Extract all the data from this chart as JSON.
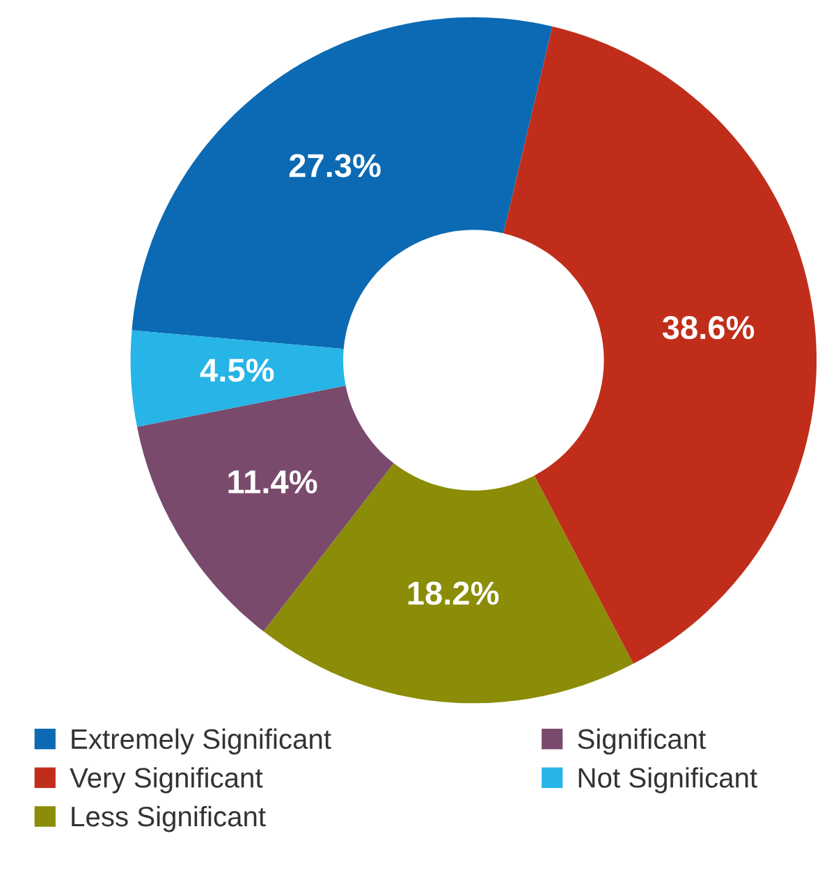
{
  "chart_data": {
    "type": "donut",
    "categories": [
      "Extremely Significant",
      "Very Significant",
      "Less Significant",
      "Significant",
      "Not Significant"
    ],
    "values": [
      27.3,
      38.6,
      18.2,
      11.4,
      4.5
    ],
    "colors": [
      "#0b6ab3",
      "#c02e1b",
      "#8b8c07",
      "#7a4a6c",
      "#27b4e6"
    ],
    "value_labels": [
      "27.3%",
      "38.6%",
      "18.2%",
      "11.4%",
      "4.5%"
    ],
    "legend": "bottom"
  }
}
